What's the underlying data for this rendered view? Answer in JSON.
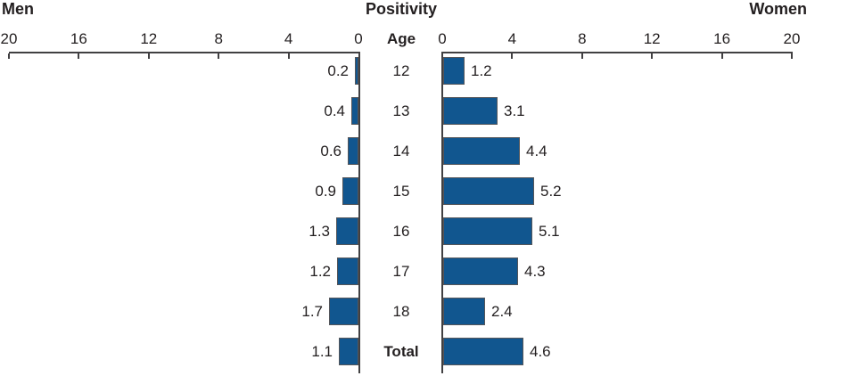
{
  "chart": {
    "title": "Positivity",
    "left_title": "Men",
    "right_title": "Women",
    "center_label": "Age"
  },
  "chart_data": {
    "type": "bar",
    "variant": "population-pyramid",
    "title": "Positivity",
    "left_series_label": "Men",
    "right_series_label": "Women",
    "center_axis_label": "Age",
    "categories": [
      "12",
      "13",
      "14",
      "15",
      "16",
      "17",
      "18",
      "Total"
    ],
    "bold_categories": [
      "Total"
    ],
    "series": [
      {
        "name": "Men",
        "side": "left",
        "values": [
          0.2,
          0.4,
          0.6,
          0.9,
          1.3,
          1.2,
          1.7,
          1.1
        ]
      },
      {
        "name": "Women",
        "side": "right",
        "values": [
          1.2,
          3.1,
          4.4,
          5.2,
          5.1,
          4.3,
          2.4,
          4.6
        ]
      }
    ],
    "axis_ticks": [
      0,
      4,
      8,
      12,
      16,
      20
    ],
    "axis_max": 20,
    "value_label_decimals": 1,
    "grid": false,
    "legend": "none",
    "bar_color": "#11568f",
    "bar_border_color": "#55565a",
    "axis_color": "#414042",
    "text_color": "#231f20"
  }
}
